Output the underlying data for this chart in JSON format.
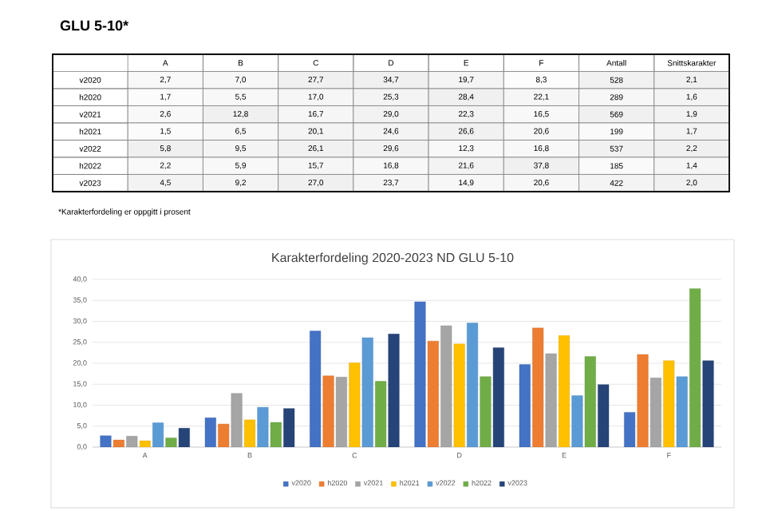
{
  "chart_data": [
    {
      "type": "heatmap",
      "title": "GLU 5-10*",
      "annotations": [
        "*Karakterfordeling er oppgitt i prosent"
      ],
      "categories": [
        "A",
        "B",
        "C",
        "D",
        "E",
        "F",
        "Antall",
        "Snittskarakter"
      ],
      "y_categories": [
        "v2020",
        "h2020",
        "v2021",
        "h2021",
        "v2022",
        "h2022",
        "v2023"
      ],
      "cells": [
        [
          2.7,
          7.0,
          27.7,
          34.7,
          19.7,
          8.3,
          528,
          2.1
        ],
        [
          1.7,
          5.5,
          17.0,
          25.3,
          28.4,
          22.1,
          289,
          1.6
        ],
        [
          2.6,
          12.8,
          16.7,
          29.0,
          22.3,
          16.5,
          569,
          1.9
        ],
        [
          1.5,
          6.5,
          20.1,
          24.6,
          26.6,
          20.6,
          199,
          1.7
        ],
        [
          5.8,
          9.5,
          26.1,
          29.6,
          12.3,
          16.8,
          537,
          2.2
        ],
        [
          2.2,
          5.9,
          15.7,
          16.8,
          21.6,
          37.8,
          185,
          1.4
        ],
        [
          4.5,
          9.2,
          27.0,
          23.7,
          14.9,
          20.6,
          422,
          2.0
        ]
      ],
      "cell_labels": [
        [
          "2,7",
          "7,0",
          "27,7",
          "34,7",
          "19,7",
          "8,3",
          "528",
          "2,1"
        ],
        [
          "1,7",
          "5,5",
          "17,0",
          "25,3",
          "28,4",
          "22,1",
          "289",
          "1,6"
        ],
        [
          "2,6",
          "12,8",
          "16,7",
          "29,0",
          "22,3",
          "16,5",
          "569",
          "1,9"
        ],
        [
          "1,5",
          "6,5",
          "20,1",
          "24,6",
          "26,6",
          "20,6",
          "199",
          "1,7"
        ],
        [
          "5,8",
          "9,5",
          "26,1",
          "29,6",
          "12,3",
          "16,8",
          "537",
          "2,2"
        ],
        [
          "2,2",
          "5,9",
          "15,7",
          "16,8",
          "21,6",
          "37,8",
          "185",
          "1,4"
        ],
        [
          "4,5",
          "9,2",
          "27,0",
          "23,7",
          "14,9",
          "20,6",
          "422",
          "2,0"
        ]
      ]
    },
    {
      "type": "bar",
      "title": "Karakterfordeling 2020-2023 ND GLU 5-10",
      "categories": [
        "A",
        "B",
        "C",
        "D",
        "E",
        "F"
      ],
      "series": [
        {
          "name": "v2020",
          "color": "#4472c4",
          "values": [
            2.7,
            7.0,
            27.7,
            34.7,
            19.7,
            8.3
          ]
        },
        {
          "name": "h2020",
          "color": "#ed7d31",
          "values": [
            1.7,
            5.5,
            17.0,
            25.3,
            28.4,
            22.1
          ]
        },
        {
          "name": "v2021",
          "color": "#a5a5a5",
          "values": [
            2.6,
            12.8,
            16.7,
            29.0,
            22.3,
            16.5
          ]
        },
        {
          "name": "h2021",
          "color": "#ffc000",
          "values": [
            1.5,
            6.5,
            20.1,
            24.6,
            26.6,
            20.6
          ]
        },
        {
          "name": "v2022",
          "color": "#5b9bd5",
          "values": [
            5.8,
            9.5,
            26.1,
            29.6,
            12.3,
            16.8
          ]
        },
        {
          "name": "h2022",
          "color": "#70ad47",
          "values": [
            2.2,
            5.9,
            15.7,
            16.8,
            21.6,
            37.8
          ]
        },
        {
          "name": "v2023",
          "color": "#264478",
          "values": [
            4.5,
            9.2,
            27.0,
            23.7,
            14.9,
            20.6
          ]
        }
      ],
      "ylim": [
        0,
        40
      ],
      "yticks": [
        {
          "value": 0,
          "label": "0,0"
        },
        {
          "value": 5,
          "label": "5,0"
        },
        {
          "value": 10,
          "label": "10,0"
        },
        {
          "value": 15,
          "label": "15,0"
        },
        {
          "value": 20,
          "label": "20,0"
        },
        {
          "value": 25,
          "label": "25,0"
        },
        {
          "value": 30,
          "label": "30,0"
        },
        {
          "value": 35,
          "label": "35,0"
        },
        {
          "value": 40,
          "label": "40,0"
        }
      ],
      "grid": "y",
      "legend": "bottom"
    }
  ]
}
